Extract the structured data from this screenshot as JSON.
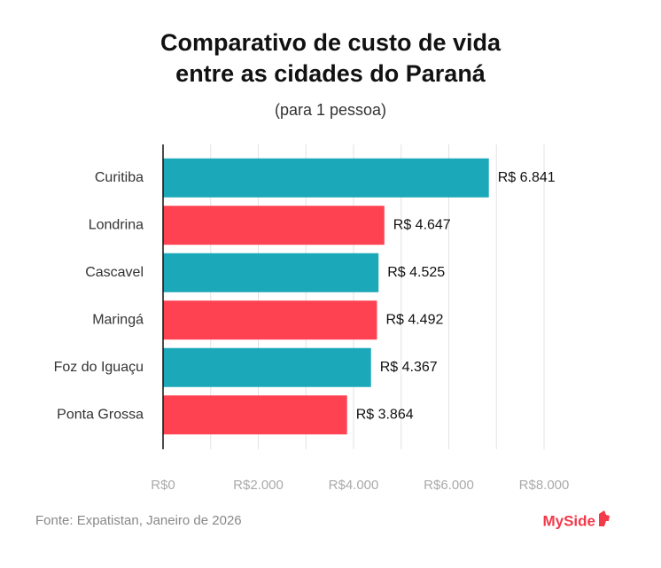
{
  "chart_data": {
    "type": "bar",
    "orientation": "horizontal",
    "title": [
      "Comparativo de custo de vida",
      "entre as cidades do Paraná"
    ],
    "subtitle": "(para 1 pessoa)",
    "categories": [
      "Curitiba",
      "Londrina",
      "Cascavel",
      "Maringá",
      "Foz do Iguaçu",
      "Ponta Grossa"
    ],
    "values": [
      6841,
      4647,
      4525,
      4492,
      4367,
      3864
    ],
    "value_labels": [
      "R$ 6.841",
      "R$ 4.647",
      "R$ 4.525",
      "R$ 4.492",
      "R$ 4.367",
      "R$ 3.864"
    ],
    "colors": [
      "#1ba8b9",
      "#ff4252",
      "#1ba8b9",
      "#ff4252",
      "#1ba8b9",
      "#ff4252"
    ],
    "xlim": [
      0,
      8000
    ],
    "xticks": [
      {
        "value": 0,
        "label": "R$0"
      },
      {
        "value": 2000,
        "label": "R$2.000"
      },
      {
        "value": 4000,
        "label": "R$4.000"
      },
      {
        "value": 6000,
        "label": "R$6.000"
      },
      {
        "value": 8000,
        "label": "R$8.000"
      }
    ],
    "minor_xticks": [
      1000,
      3000,
      5000,
      7000
    ],
    "grid": true,
    "source": "Fonte: Expatistan, Janeiro de 2026",
    "brand": "MySide"
  }
}
